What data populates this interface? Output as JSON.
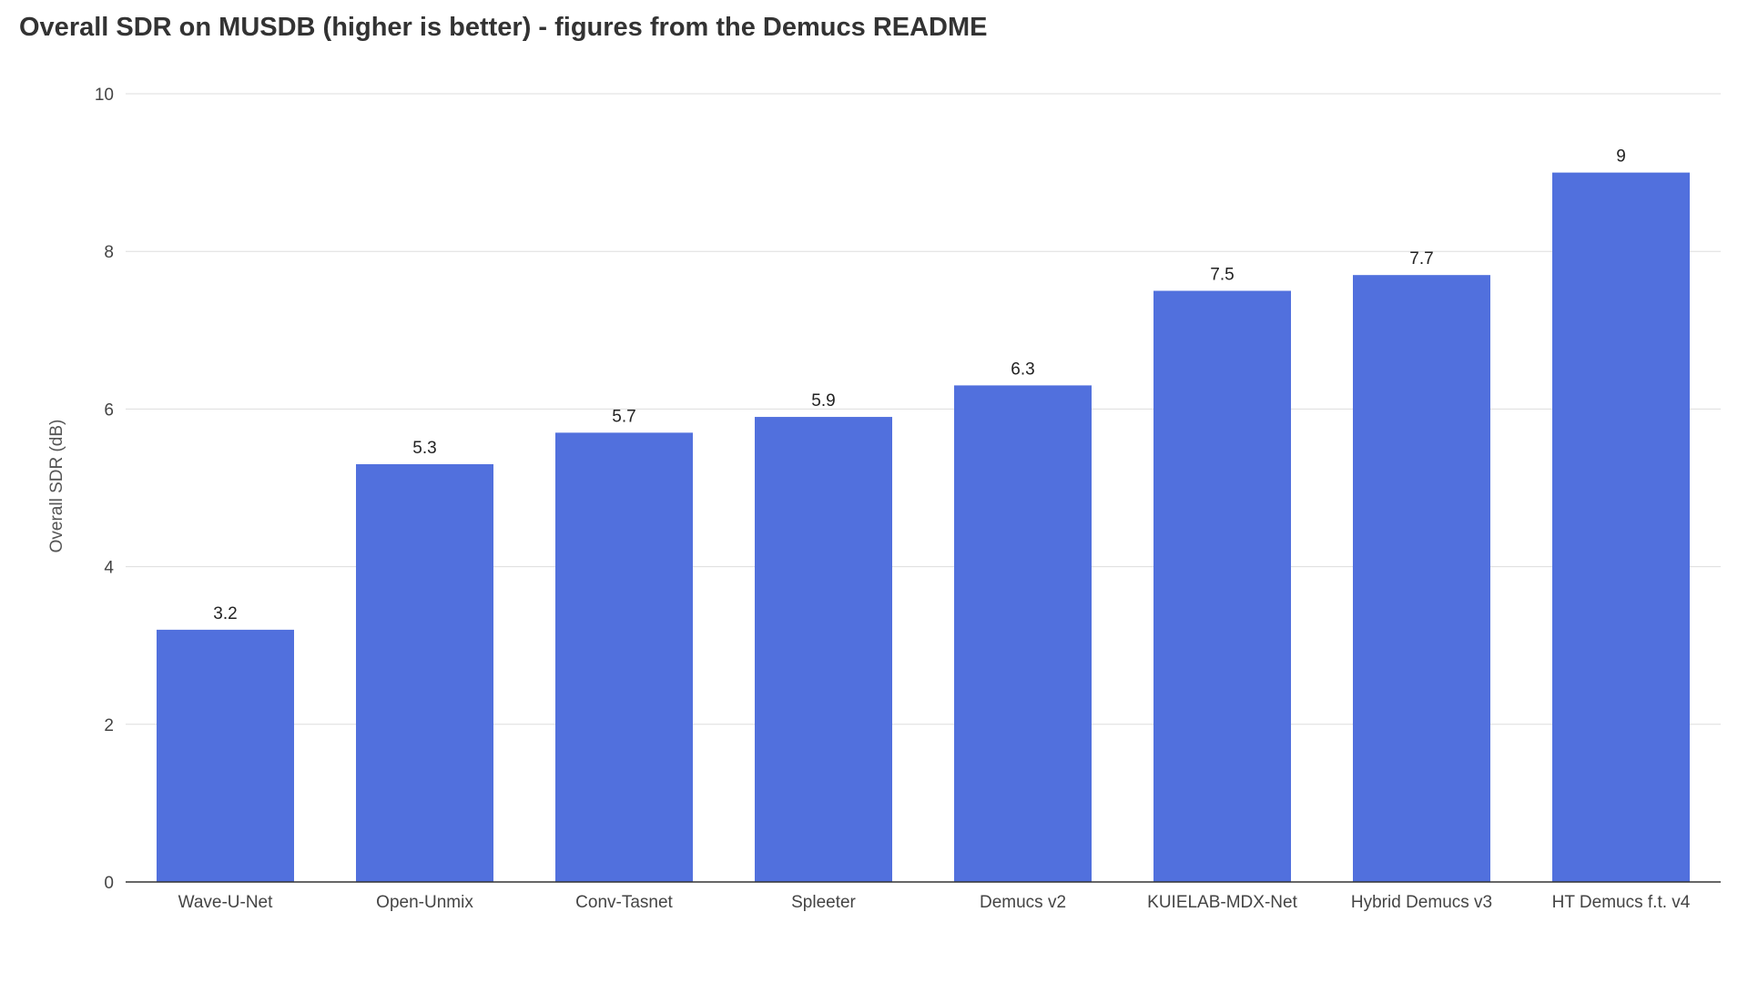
{
  "chart_data": {
    "type": "bar",
    "title": "Overall SDR on MUSDB (higher is better) - figures from the Demucs README",
    "xlabel": "",
    "ylabel": "Overall SDR (dB)",
    "ylim": [
      0,
      10
    ],
    "yticks": [
      0,
      2,
      4,
      6,
      8,
      10
    ],
    "grid": true,
    "categories": [
      "Wave-U-Net",
      "Open-Unmix",
      "Conv-Tasnet",
      "Spleeter",
      "Demucs v2",
      "KUIELAB-MDX-Net",
      "Hybrid Demucs v3",
      "HT Demucs f.t. v4"
    ],
    "values": [
      3.2,
      5.3,
      5.7,
      5.9,
      6.3,
      7.5,
      7.7,
      9
    ],
    "bar_color": "#5170DD",
    "grid_color": "#DDDDDD",
    "axis_color": "#333333"
  }
}
